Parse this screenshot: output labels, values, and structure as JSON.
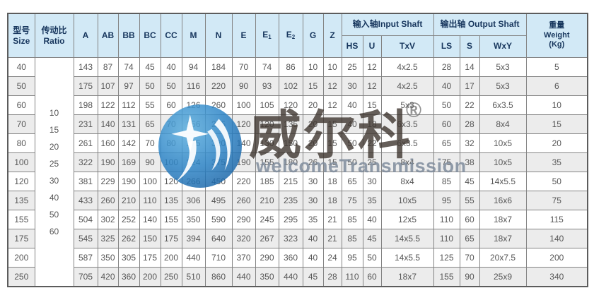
{
  "colors": {
    "header_bg": "#d2e9f6",
    "header_text": "#17365d",
    "row_bg": "#ffffff",
    "row_alt_bg": "#ececec",
    "cell_text": "#565656",
    "border": "#838383",
    "outer_border": "#5c5c5c",
    "logo_blue": "#2b83c6"
  },
  "table": {
    "header": {
      "size_zh": "型号",
      "size_en": "Size",
      "ratio_zh": "传动比",
      "ratio_en": "Ratio",
      "dim_columns": [
        {
          "base": "A",
          "sub": ""
        },
        {
          "base": "AB",
          "sub": ""
        },
        {
          "base": "BB",
          "sub": ""
        },
        {
          "base": "BC",
          "sub": ""
        },
        {
          "base": "CC",
          "sub": ""
        },
        {
          "base": "M",
          "sub": ""
        },
        {
          "base": "N",
          "sub": ""
        },
        {
          "base": "E",
          "sub": ""
        },
        {
          "base": "E",
          "sub": "1"
        },
        {
          "base": "E",
          "sub": "2"
        },
        {
          "base": "G",
          "sub": ""
        },
        {
          "base": "Z",
          "sub": ""
        }
      ],
      "input_group": "输入轴Input Shaft",
      "input_cols": [
        "HS",
        "U",
        "TxV"
      ],
      "output_group": "输出轴 Output Shaft",
      "output_cols": [
        "LS",
        "S",
        "WxY"
      ],
      "weight_zh": "重量",
      "weight_en": "Weight",
      "weight_unit": "(Kg)"
    },
    "ratio_values": [
      "10",
      "15",
      "20",
      "25",
      "30",
      "40",
      "50",
      "60"
    ],
    "rows": [
      {
        "size": "40",
        "cells": [
          "143",
          "87",
          "74",
          "45",
          "40",
          "94",
          "184",
          "70",
          "74",
          "86",
          "10",
          "10",
          "25",
          "12",
          "4x2.5",
          "28",
          "14",
          "5x3",
          "5"
        ]
      },
      {
        "size": "50",
        "cells": [
          "175",
          "107",
          "97",
          "50",
          "50",
          "116",
          "220",
          "90",
          "93",
          "102",
          "15",
          "12",
          "30",
          "12",
          "4x2.5",
          "40",
          "17",
          "5x3",
          "6"
        ]
      },
      {
        "size": "60",
        "cells": [
          "198",
          "122",
          "112",
          "55",
          "60",
          "126",
          "260",
          "100",
          "105",
          "120",
          "20",
          "12",
          "40",
          "15",
          "5x3",
          "50",
          "22",
          "6x3.5",
          "10"
        ]
      },
      {
        "size": "70",
        "cells": [
          "231",
          "140",
          "131",
          "65",
          "70",
          "156",
          "295",
          "120",
          "120",
          "135",
          "20",
          "15",
          "40",
          "18",
          "6x3.5",
          "60",
          "28",
          "8x4",
          "15"
        ]
      },
      {
        "size": "80",
        "cells": [
          "261",
          "160",
          "142",
          "70",
          "80",
          "175",
          "320",
          "140",
          "130",
          "150",
          "20",
          "15",
          "50",
          "22",
          "6x3.5",
          "65",
          "32",
          "10x5",
          "20"
        ]
      },
      {
        "size": "100",
        "cells": [
          "322",
          "190",
          "169",
          "90",
          "100",
          "224",
          "375",
          "190",
          "155",
          "180",
          "26",
          "15",
          "50",
          "25",
          "8x4",
          "75",
          "38",
          "10x5",
          "35"
        ]
      },
      {
        "size": "120",
        "cells": [
          "381",
          "229",
          "190",
          "100",
          "120",
          "266",
          "450",
          "220",
          "185",
          "215",
          "30",
          "18",
          "65",
          "30",
          "8x4",
          "85",
          "45",
          "14x5.5",
          "50"
        ]
      },
      {
        "size": "135",
        "cells": [
          "433",
          "260",
          "210",
          "110",
          "135",
          "306",
          "495",
          "260",
          "210",
          "235",
          "30",
          "18",
          "75",
          "35",
          "10x5",
          "95",
          "55",
          "16x6",
          "75"
        ]
      },
      {
        "size": "155",
        "cells": [
          "504",
          "302",
          "252",
          "140",
          "155",
          "350",
          "590",
          "290",
          "245",
          "295",
          "35",
          "21",
          "85",
          "40",
          "12x5",
          "110",
          "60",
          "18x7",
          "115"
        ]
      },
      {
        "size": "175",
        "cells": [
          "545",
          "325",
          "262",
          "150",
          "175",
          "394",
          "640",
          "320",
          "267",
          "323",
          "40",
          "21",
          "85",
          "45",
          "14x5.5",
          "110",
          "65",
          "18x7",
          "140"
        ]
      },
      {
        "size": "200",
        "cells": [
          "587",
          "350",
          "305",
          "175",
          "200",
          "440",
          "710",
          "370",
          "290",
          "360",
          "40",
          "24",
          "95",
          "50",
          "14x5.5",
          "125",
          "70",
          "20x7.5",
          "200"
        ]
      },
      {
        "size": "250",
        "cells": [
          "705",
          "420",
          "360",
          "200",
          "250",
          "510",
          "860",
          "440",
          "350",
          "440",
          "45",
          "28",
          "110",
          "60",
          "18x7",
          "155",
          "90",
          "25x9",
          "340"
        ]
      }
    ]
  },
  "watermark": {
    "brand_zh": "威尔科",
    "registered": "®",
    "brand_en": "welcomeTransmission"
  }
}
